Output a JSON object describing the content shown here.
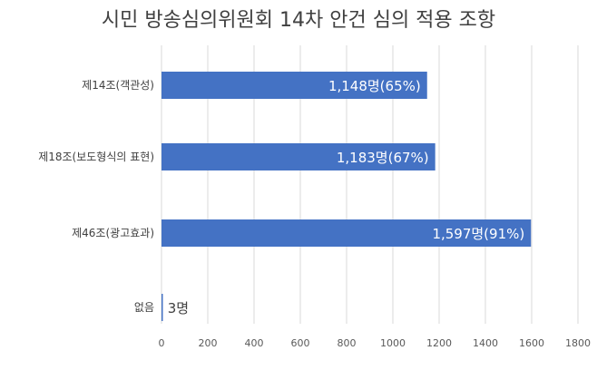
{
  "chart_data": {
    "type": "bar",
    "orientation": "horizontal",
    "title": "시민 방송심의위원회 14차 안건 심의 적용 조항",
    "categories": [
      "제14조(객관성)",
      "제18조(보도형식의 표현)",
      "제46조(광고효과)",
      "없음"
    ],
    "values": [
      1148,
      1183,
      1597,
      3
    ],
    "data_labels": [
      "1,148명(65%)",
      "1,183명(67%)",
      "1,597명(91%)",
      "3명"
    ],
    "x_ticks": [
      0,
      200,
      400,
      600,
      800,
      1000,
      1200,
      1400,
      1600,
      1800
    ],
    "xlim": [
      0,
      1800
    ],
    "xlabel": "",
    "ylabel": "",
    "grid": "vertical",
    "legend": "none",
    "bar_color": "#4472c4",
    "grid_color": "#d9d9d9",
    "text_color": "#404040"
  }
}
